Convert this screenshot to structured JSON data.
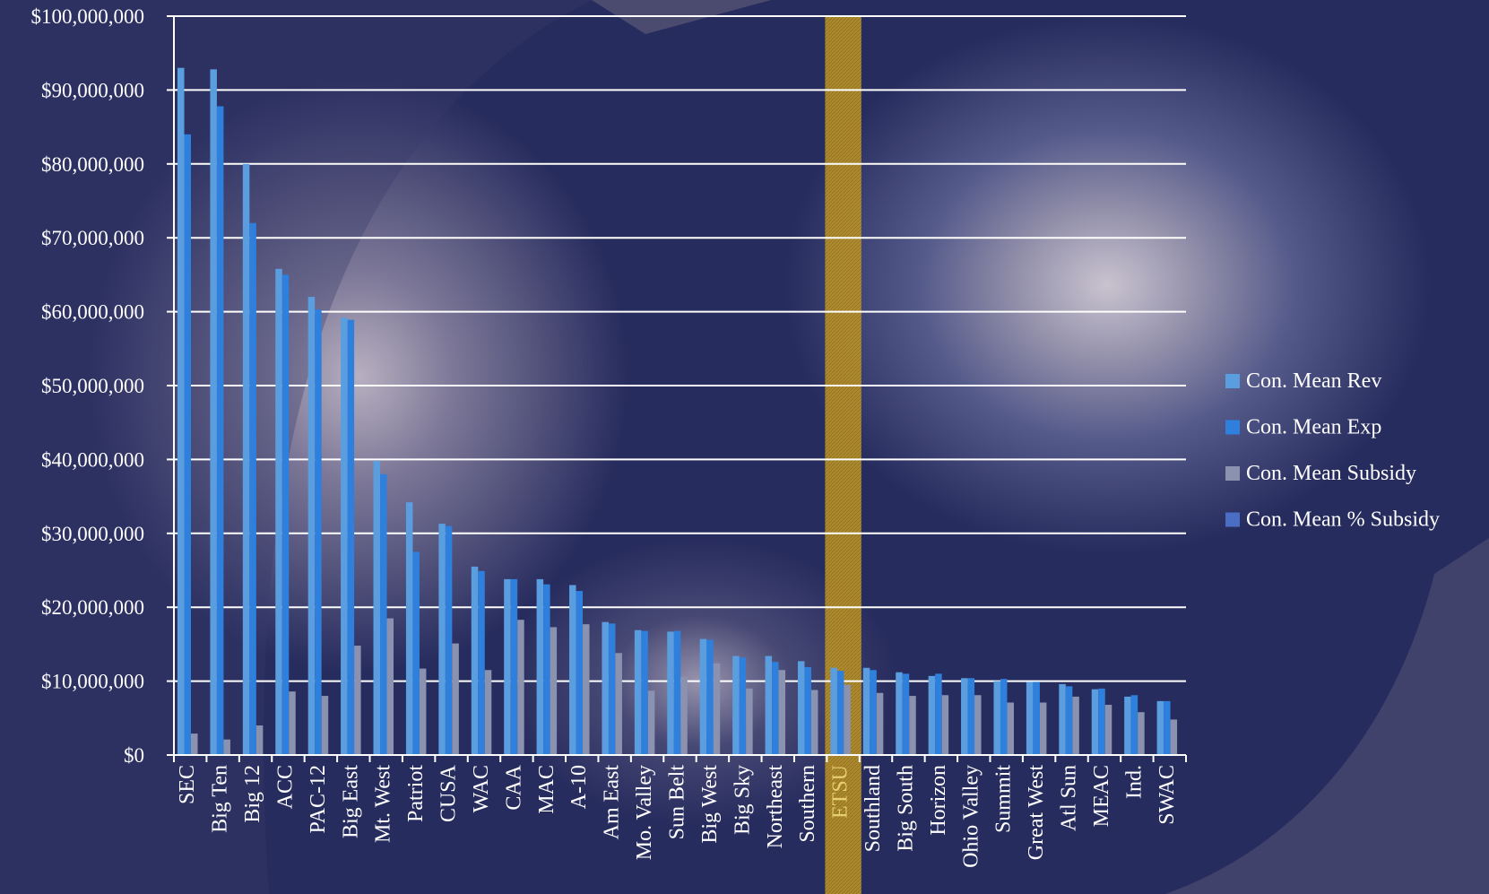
{
  "chart_data": {
    "type": "bar",
    "title": "",
    "xlabel": "",
    "ylabel": "",
    "ylim": [
      0,
      100000000
    ],
    "yticks": [
      0,
      10000000,
      20000000,
      30000000,
      40000000,
      50000000,
      60000000,
      70000000,
      80000000,
      90000000,
      100000000
    ],
    "ytick_labels": [
      "$0",
      "$10,000,000",
      "$20,000,000",
      "$30,000,000",
      "$40,000,000",
      "$50,000,000",
      "$60,000,000",
      "$70,000,000",
      "$80,000,000",
      "$90,000,000",
      "$100,000,000"
    ],
    "grid": true,
    "legend_position": "right",
    "highlight_category": "ETSU",
    "highlight_color": "#c9a12a",
    "categories": [
      "SEC",
      "Big Ten",
      "Big 12",
      "ACC",
      "PAC-12",
      "Big East",
      "Mt. West",
      "Patriot",
      "CUSA",
      "WAC",
      "CAA",
      "MAC",
      "A-10",
      "Am East",
      "Mo. Valley",
      "Sun Belt",
      "Big West",
      "Big Sky",
      "Northeast",
      "Southern",
      "ETSU",
      "Southland",
      "Big South",
      "Horizon",
      "Ohio Valley",
      "Summit",
      "Great West",
      "Atl Sun",
      "MEAC",
      "Ind.",
      "SWAC"
    ],
    "series": [
      {
        "name": "Con. Mean Rev",
        "color": "#5b9ee0",
        "values": [
          93000000,
          92800000,
          80000000,
          65800000,
          62000000,
          59200000,
          39800000,
          34200000,
          31300000,
          25500000,
          23800000,
          23800000,
          23000000,
          18000000,
          16900000,
          16700000,
          15700000,
          13400000,
          13400000,
          12700000,
          11800000,
          11800000,
          11200000,
          10700000,
          10400000,
          10000000,
          9900000,
          9600000,
          8900000,
          7900000,
          7300000
        ]
      },
      {
        "name": "Con. Mean Exp",
        "color": "#2f7fdc",
        "values": [
          84000000,
          87800000,
          72000000,
          65000000,
          60300000,
          58900000,
          38000000,
          27500000,
          31000000,
          24900000,
          23800000,
          23100000,
          22200000,
          17800000,
          16800000,
          16800000,
          15600000,
          13200000,
          12600000,
          11900000,
          11400000,
          11500000,
          11000000,
          11000000,
          10400000,
          10300000,
          9900000,
          9300000,
          9000000,
          8100000,
          7300000
        ]
      },
      {
        "name": "Con. Mean Subsidy",
        "color": "#8a92b0",
        "values": [
          2900000,
          2100000,
          4000000,
          8600000,
          8000000,
          14800000,
          18500000,
          11700000,
          15100000,
          11500000,
          18300000,
          17300000,
          17700000,
          13800000,
          8700000,
          10600000,
          12400000,
          9000000,
          11500000,
          8800000,
          9500000,
          8400000,
          8000000,
          8100000,
          8100000,
          7100000,
          7100000,
          7900000,
          6800000,
          5800000,
          4800000
        ]
      },
      {
        "name": "Con. Mean % Subsidy",
        "color": "#4a6ec4",
        "values": [
          3,
          2,
          5,
          13,
          13,
          25,
          46,
          34,
          48,
          45,
          77,
          73,
          77,
          77,
          51,
          63,
          79,
          67,
          86,
          69,
          80,
          71,
          71,
          76,
          78,
          71,
          72,
          82,
          76,
          73,
          66
        ]
      }
    ]
  }
}
